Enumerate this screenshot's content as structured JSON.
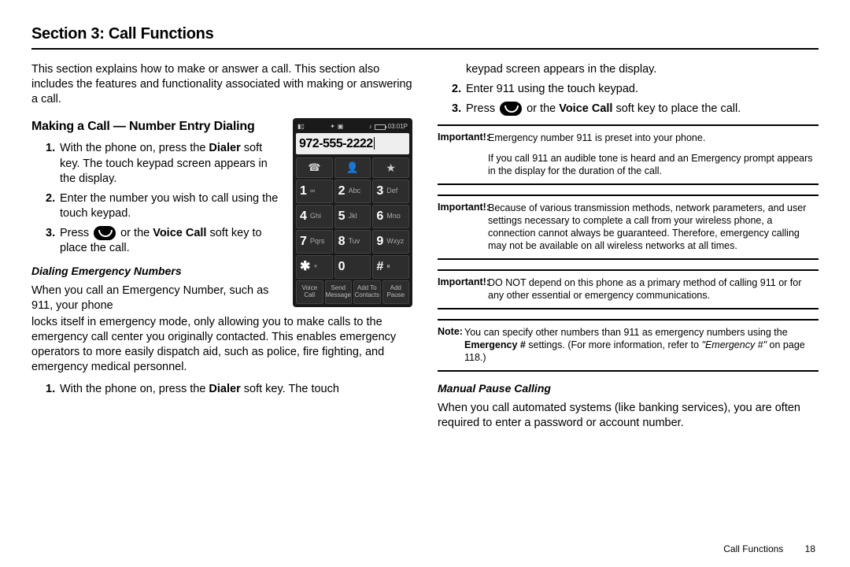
{
  "section_title": "Section 3: Call Functions",
  "intro": "This section explains how to make or answer a call. This section also includes the features and functionality associated with making or answering a call.",
  "h2_making": "Making a Call — Number Entry Dialing",
  "left_steps": {
    "s1a": "With the phone on, press the ",
    "s1b": "Dialer",
    "s1c": " soft key. The touch keypad screen appears in the display.",
    "s2": "Enter the number you wish to call using the touch keypad.",
    "s3a": "Press ",
    "s3b": " or the ",
    "s3c": "Voice Call",
    "s3d": " soft key to place the call."
  },
  "h3_emergency": "Dialing Emergency Numbers",
  "emergency_p1": "When you call an Emergency Number, such as 911, your phone locks itself in emergency mode, only allowing you to make calls to the emergency call center you originally contacted. This enables emergency operators to more easily dispatch aid, such as police, fire fighting, and emergency medical personnel.",
  "emergency_step1a": "With the phone on, press the ",
  "emergency_step1b": "Dialer",
  "emergency_step1c": " soft key. The touch",
  "right_top": "keypad screen appears in the display.",
  "right_s2": "Enter 911 using the touch keypad.",
  "right_s3a": "Press ",
  "right_s3b": " or the ",
  "right_s3c": "Voice Call",
  "right_s3d": " soft key to place the call.",
  "imp1_label": "Important!:",
  "imp1_body": "Emergency number 911 is preset into your phone.",
  "imp1_extra": "If you call 911 an audible tone is heard and an Emergency prompt appears in the display for the duration of the call.",
  "imp2_label": "Important!:",
  "imp2_body": "Because of various transmission methods, network parameters, and user settings necessary to complete a call from your wireless phone, a connection cannot always be guaranteed. Therefore, emergency calling may not be available on all wireless networks at all times.",
  "imp3_label": "Important!:",
  "imp3_body": "DO NOT depend on this phone as a primary method of calling 911 or for any other essential or emergency communications.",
  "note_label": "Note:",
  "note_body_a": "You can specify other numbers than 911 as emergency numbers using the ",
  "note_body_b": "Emergency #",
  "note_body_c": " settings. (For more information, refer to ",
  "note_body_d": "\"Emergency #\"",
  "note_body_e": " on page 118.)",
  "h3_pause": "Manual Pause Calling",
  "pause_p": "When you call automated systems (like banking services), you are often required to enter a password or account number.",
  "footer_name": "Call Functions",
  "footer_page": "18",
  "phone": {
    "time": "03:01P",
    "number": "972-555-2222",
    "keys": [
      {
        "d": "1",
        "t": "∞"
      },
      {
        "d": "2",
        "t": "Abc"
      },
      {
        "d": "3",
        "t": "Def"
      },
      {
        "d": "4",
        "t": "Ghi"
      },
      {
        "d": "5",
        "t": "Jkl"
      },
      {
        "d": "6",
        "t": "Mno"
      },
      {
        "d": "7",
        "t": "Pqrs"
      },
      {
        "d": "8",
        "t": "Tuv"
      },
      {
        "d": "9",
        "t": "Wxyz"
      },
      {
        "d": "✱",
        "t": "+"
      },
      {
        "d": "0",
        "t": ""
      },
      {
        "d": "#",
        "t": "⏸"
      }
    ],
    "soft": [
      "Voice\nCall",
      "Send\nMessage",
      "Add To\nContacts",
      "Add\nPause"
    ]
  },
  "colors": {
    "text": "#000000",
    "bg": "#ffffff",
    "rule": "#000000",
    "phone_bg": "#1a1a1a",
    "key_bg": "#2d2d2d",
    "display_bg": "#eeeeee"
  }
}
